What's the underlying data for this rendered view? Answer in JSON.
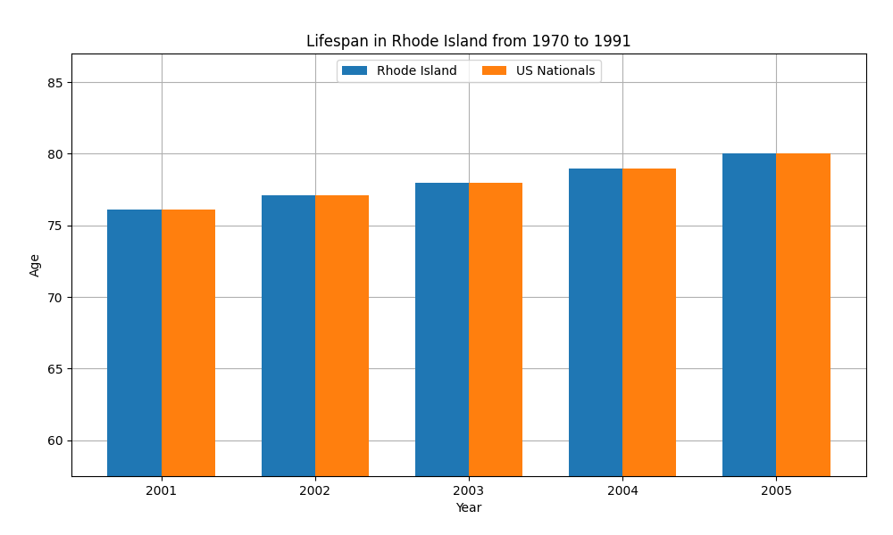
{
  "chart_data": {
    "type": "bar",
    "title": "Lifespan in Rhode Island from 1970 to 1991",
    "xlabel": "Year",
    "ylabel": "Age",
    "categories": [
      "2001",
      "2002",
      "2003",
      "2004",
      "2005"
    ],
    "series": [
      {
        "name": "Rhode Island",
        "values": [
          76.1,
          77.1,
          78.0,
          79.0,
          80.0
        ]
      },
      {
        "name": "US Nationals",
        "values": [
          76.1,
          77.1,
          78.0,
          79.0,
          80.0
        ]
      }
    ],
    "ylim": [
      57.5,
      87
    ],
    "yticks": [
      60,
      65,
      70,
      75,
      80,
      85
    ],
    "grid": true,
    "legend": "upper center"
  }
}
